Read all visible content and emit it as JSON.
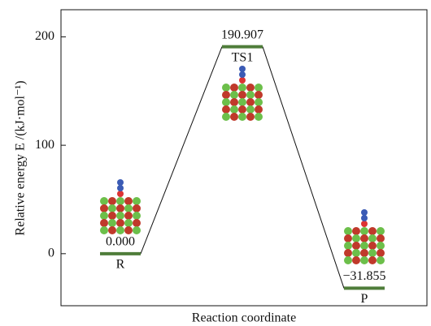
{
  "chart_data": {
    "type": "line",
    "x_label": "Reaction coordinate",
    "y_label": "Relative energy  E /(kJ·mol⁻¹)",
    "categories": [
      "R",
      "TS1",
      "P"
    ],
    "values": [
      0.0,
      190.907,
      -31.855
    ],
    "value_labels": [
      "0.000",
      "190.907",
      "−31.855"
    ],
    "color": "#4f7d3a",
    "ylim": [
      -48,
      225
    ],
    "yticks": [
      0,
      100,
      200
    ]
  }
}
